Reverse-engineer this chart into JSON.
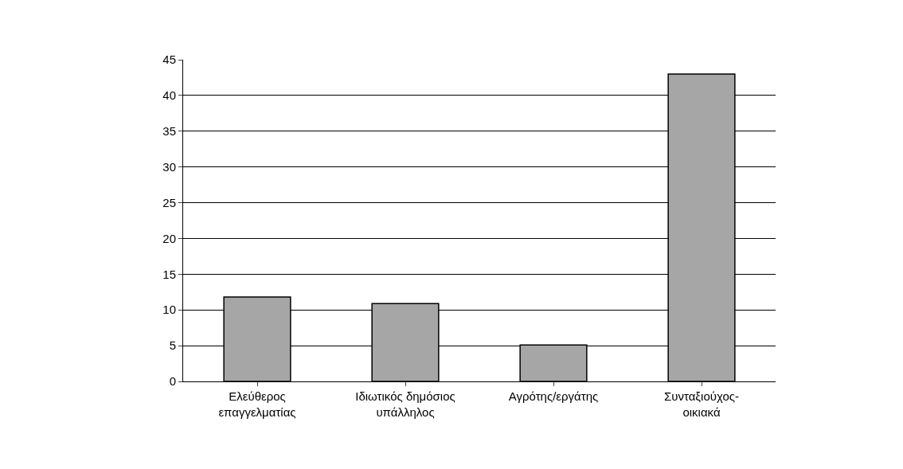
{
  "chart_data": {
    "type": "bar",
    "categories": [
      "Ελεύθερος\nεπαγγελματίας",
      "Ιδιωτικός δημόσιος\nυπάλληλος",
      "Αγρότης/εργάτης",
      "Συνταξιούχος-\nοικιακά"
    ],
    "values": [
      11.8,
      10.9,
      5.1,
      43
    ],
    "color": "#a6a6a6",
    "ylim": [
      0,
      45
    ],
    "yticks": [
      0,
      5,
      10,
      15,
      20,
      25,
      30,
      35,
      40,
      45
    ],
    "grid": "y"
  }
}
